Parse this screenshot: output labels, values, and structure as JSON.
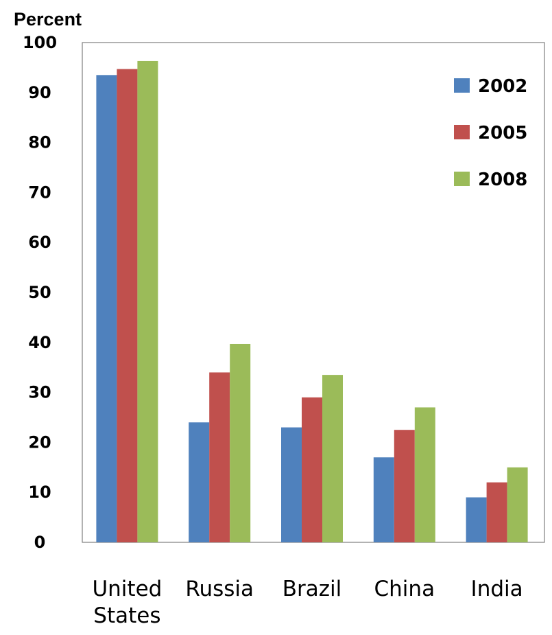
{
  "chart_data": {
    "type": "bar",
    "ylabel": "Percent",
    "xlabel": "",
    "ylim": [
      0,
      100
    ],
    "yticks": [
      0,
      10,
      20,
      30,
      40,
      50,
      60,
      70,
      80,
      90,
      100
    ],
    "categories": [
      [
        "United",
        "States"
      ],
      [
        "Russia"
      ],
      [
        "Brazil"
      ],
      [
        "China"
      ],
      [
        "India"
      ]
    ],
    "series": [
      {
        "name": "2002",
        "color": "#4f81bd",
        "values": [
          93.5,
          24,
          23,
          17,
          9
        ]
      },
      {
        "name": "2005",
        "color": "#c0504d",
        "values": [
          94.7,
          34,
          29,
          22.5,
          12
        ]
      },
      {
        "name": "2008",
        "color": "#9bbb59",
        "values": [
          96.3,
          39.7,
          33.5,
          27,
          15
        ]
      }
    ],
    "legend_position": "top-right",
    "grid": false
  }
}
